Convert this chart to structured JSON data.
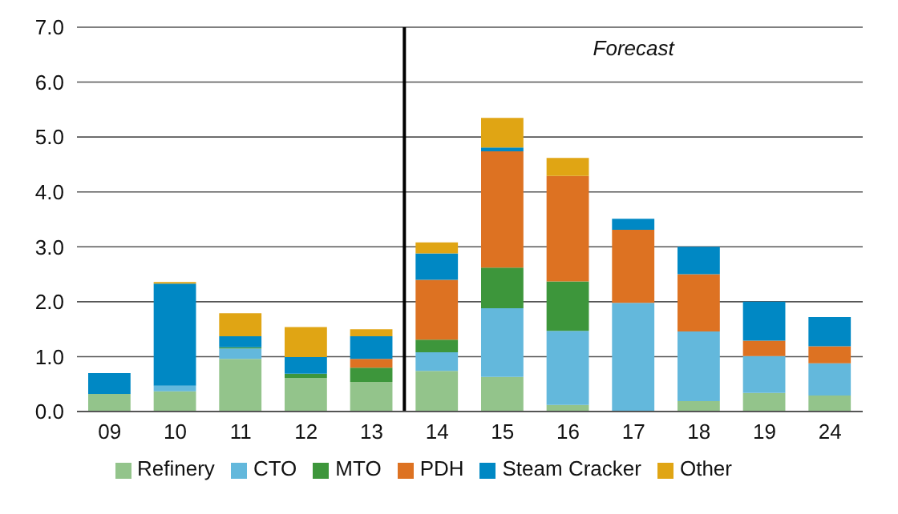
{
  "chart_data": {
    "type": "bar",
    "stacked": true,
    "categories": [
      "09",
      "10",
      "11",
      "12",
      "13",
      "14",
      "15",
      "16",
      "17",
      "18",
      "19",
      "24"
    ],
    "series": [
      {
        "name": "Refinery",
        "color": "#93c48b",
        "values": [
          0.32,
          0.37,
          0.96,
          0.61,
          0.54,
          0.74,
          0.63,
          0.12,
          null,
          0.19,
          0.34,
          0.29
        ]
      },
      {
        "name": "CTO",
        "color": "#63b8dc",
        "values": [
          null,
          0.1,
          0.19,
          null,
          null,
          0.34,
          1.25,
          1.35,
          1.98,
          1.27,
          0.67,
          0.59
        ]
      },
      {
        "name": "MTO",
        "color": "#3d963b",
        "values": [
          null,
          null,
          0.02,
          0.08,
          0.26,
          0.23,
          0.74,
          0.9,
          null,
          null,
          null,
          null
        ]
      },
      {
        "name": "PDH",
        "color": "#dd7222",
        "values": [
          null,
          null,
          null,
          null,
          0.16,
          1.09,
          2.12,
          1.92,
          1.33,
          1.04,
          0.28,
          0.31
        ]
      },
      {
        "name": "Steam Cracker",
        "color": "#0088c4",
        "values": [
          0.38,
          1.86,
          0.2,
          0.3,
          0.41,
          0.48,
          0.07,
          null,
          0.2,
          0.5,
          0.71,
          0.53
        ]
      },
      {
        "name": "Other",
        "color": "#e0a514",
        "values": [
          null,
          0.03,
          0.42,
          0.55,
          0.13,
          0.2,
          0.54,
          0.33,
          null,
          null,
          null,
          null
        ]
      }
    ],
    "ylim": [
      0,
      7
    ],
    "yticks": [
      {
        "value": 0,
        "label": "0.0"
      },
      {
        "value": 1,
        "label": "1.0"
      },
      {
        "value": 2,
        "label": "2.0"
      },
      {
        "value": 3,
        "label": "3.0"
      },
      {
        "value": 4,
        "label": "4.0"
      },
      {
        "value": 5,
        "label": "5.0"
      },
      {
        "value": 6,
        "label": "6.0"
      },
      {
        "value": 7,
        "label": "7.0"
      }
    ],
    "grid": "y",
    "legend": "bottom",
    "ref_lines": [
      {
        "axis": "x",
        "value": "14",
        "color": "#000000"
      }
    ],
    "annotations": [
      "Forecast"
    ]
  }
}
